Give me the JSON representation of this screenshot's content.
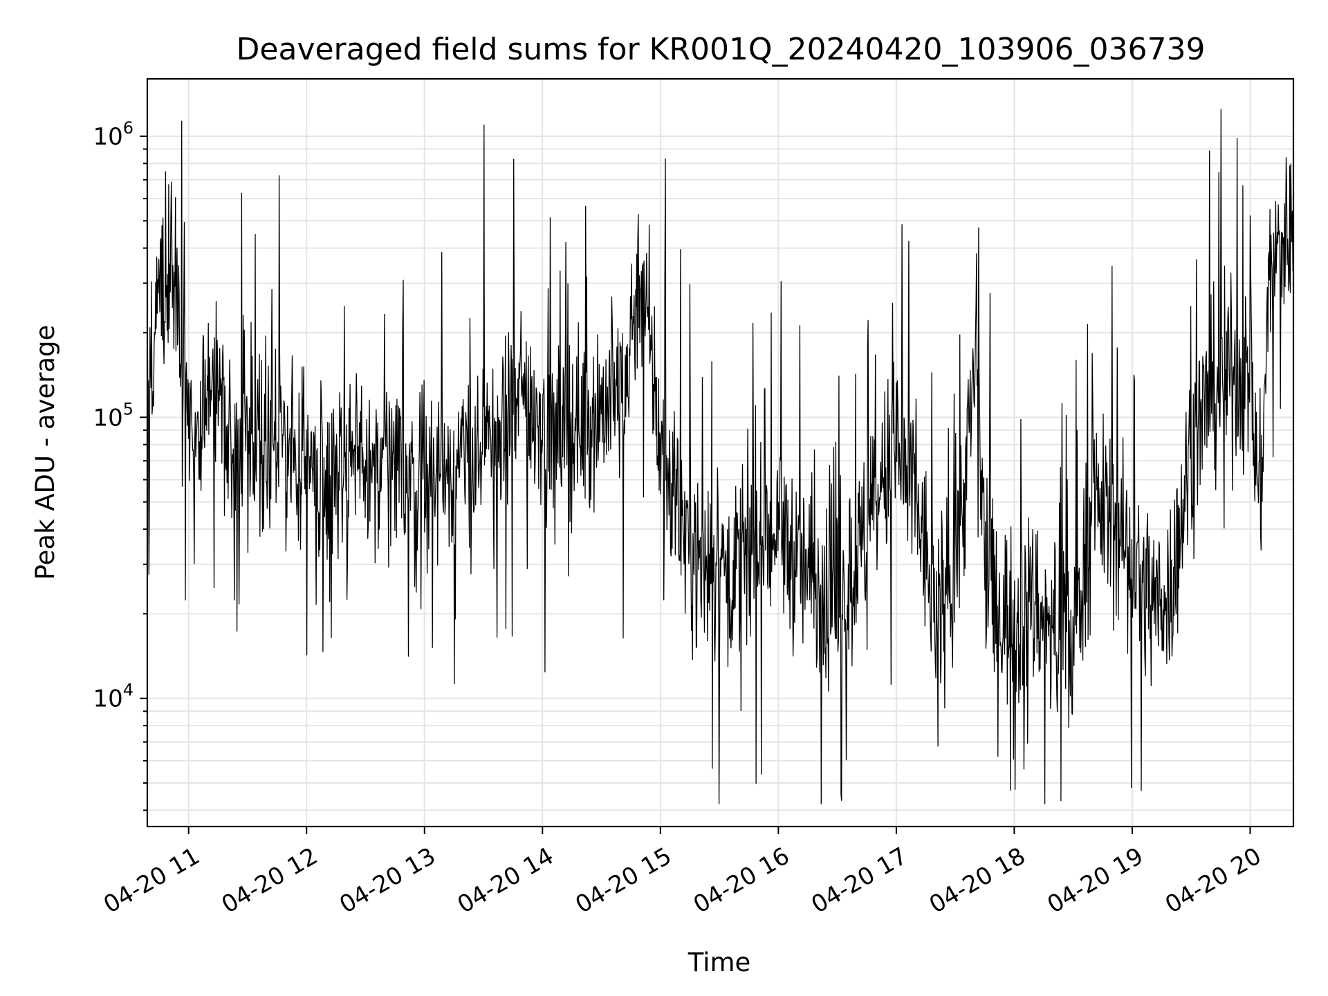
{
  "chart_data": {
    "type": "line",
    "title": "Deaveraged field sums for KR001Q_20240420_103906_036739",
    "xlabel": "Time",
    "ylabel": "Peak ADU - average",
    "yscale": "log",
    "xlim": [
      "2024-04-20 10:39",
      "2024-04-20 20:22"
    ],
    "ylim": [
      3500,
      1600000
    ],
    "grid": true,
    "x_ticks": [
      {
        "value": "2024-04-20 11:00",
        "label": "04-20 11"
      },
      {
        "value": "2024-04-20 12:00",
        "label": "04-20 12"
      },
      {
        "value": "2024-04-20 13:00",
        "label": "04-20 13"
      },
      {
        "value": "2024-04-20 14:00",
        "label": "04-20 14"
      },
      {
        "value": "2024-04-20 15:00",
        "label": "04-20 15"
      },
      {
        "value": "2024-04-20 16:00",
        "label": "04-20 16"
      },
      {
        "value": "2024-04-20 17:00",
        "label": "04-20 17"
      },
      {
        "value": "2024-04-20 18:00",
        "label": "04-20 18"
      },
      {
        "value": "2024-04-20 19:00",
        "label": "04-20 19"
      },
      {
        "value": "2024-04-20 20:00",
        "label": "04-20 20"
      }
    ],
    "y_ticks": [
      {
        "value": 10000,
        "base": "10",
        "exp": "4"
      },
      {
        "value": 100000,
        "base": "10",
        "exp": "5"
      },
      {
        "value": 1000000,
        "base": "10",
        "exp": "6"
      }
    ],
    "series": [
      {
        "color": "#000000",
        "x": [
          "2024-04-20 10:39",
          "2024-04-20 10:42",
          "2024-04-20 10:45",
          "2024-04-20 10:48",
          "2024-04-20 10:51",
          "2024-04-20 10:54",
          "2024-04-20 10:57",
          "2024-04-20 11:00",
          "2024-04-20 11:05",
          "2024-04-20 11:10",
          "2024-04-20 11:15",
          "2024-04-20 11:20",
          "2024-04-20 11:30",
          "2024-04-20 11:40",
          "2024-04-20 11:50",
          "2024-04-20 12:00",
          "2024-04-20 12:10",
          "2024-04-20 12:20",
          "2024-04-20 12:30",
          "2024-04-20 12:40",
          "2024-04-20 12:50",
          "2024-04-20 13:00",
          "2024-04-20 13:10",
          "2024-04-20 13:20",
          "2024-04-20 13:30",
          "2024-04-20 13:40",
          "2024-04-20 13:50",
          "2024-04-20 14:00",
          "2024-04-20 14:10",
          "2024-04-20 14:20",
          "2024-04-20 14:30",
          "2024-04-20 14:40",
          "2024-04-20 14:45",
          "2024-04-20 14:50",
          "2024-04-20 14:55",
          "2024-04-20 15:00",
          "2024-04-20 15:10",
          "2024-04-20 15:20",
          "2024-04-20 15:30",
          "2024-04-20 15:40",
          "2024-04-20 15:50",
          "2024-04-20 16:00",
          "2024-04-20 16:10",
          "2024-04-20 16:20",
          "2024-04-20 16:30",
          "2024-04-20 16:40",
          "2024-04-20 16:50",
          "2024-04-20 17:00",
          "2024-04-20 17:10",
          "2024-04-20 17:20",
          "2024-04-20 17:30",
          "2024-04-20 17:35",
          "2024-04-20 17:40",
          "2024-04-20 17:45",
          "2024-04-20 17:50",
          "2024-04-20 18:00",
          "2024-04-20 18:10",
          "2024-04-20 18:20",
          "2024-04-20 18:30",
          "2024-04-20 18:40",
          "2024-04-20 18:50",
          "2024-04-20 19:00",
          "2024-04-20 19:10",
          "2024-04-20 19:20",
          "2024-04-20 19:30",
          "2024-04-20 19:40",
          "2024-04-20 19:50",
          "2024-04-20 20:00",
          "2024-04-20 20:05",
          "2024-04-20 20:10",
          "2024-04-20 20:15",
          "2024-04-20 20:22"
        ],
        "values": [
          200000,
          150000,
          300000,
          250000,
          450000,
          200000,
          150000,
          110000,
          90000,
          150000,
          120000,
          80000,
          90000,
          85000,
          75000,
          70000,
          65000,
          70000,
          68000,
          70000,
          65000,
          60000,
          65000,
          70000,
          75000,
          90000,
          120000,
          100000,
          90000,
          95000,
          110000,
          120000,
          200000,
          350000,
          170000,
          80000,
          45000,
          30000,
          30000,
          28000,
          35000,
          40000,
          30000,
          25000,
          20000,
          30000,
          50000,
          80000,
          50000,
          20000,
          30000,
          60000,
          150000,
          40000,
          20000,
          20000,
          22000,
          18000,
          16000,
          50000,
          45000,
          30000,
          22000,
          25000,
          80000,
          120000,
          150000,
          130000,
          50000,
          350000,
          400000,
          500000
        ]
      }
    ]
  }
}
